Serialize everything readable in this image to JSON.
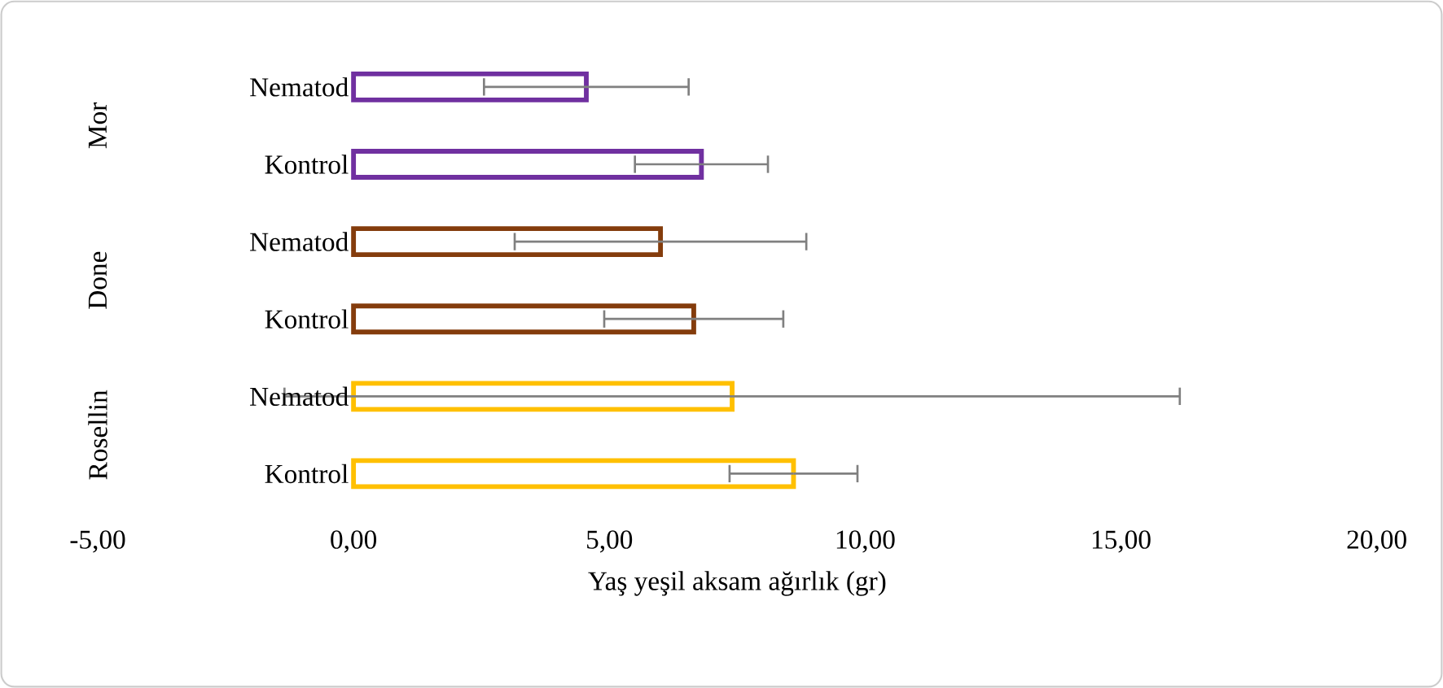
{
  "chart_data": {
    "type": "bar",
    "orientation": "horizontal",
    "xlabel": "Yaş yeşil aksam ağırlık (gr)",
    "categories": [
      "Nematod",
      "Kontrol",
      "Nematod",
      "Kontrol",
      "Nematod",
      "Kontrol"
    ],
    "annotations": [
      "Mor",
      "Done",
      "Rosellin"
    ],
    "values": [
      4.55,
      6.8,
      6.0,
      6.65,
      7.4,
      8.6
    ],
    "errors": [
      2.0,
      1.3,
      2.85,
      1.75,
      8.75,
      1.25
    ],
    "colors": [
      "#7030a0",
      "#7030a0",
      "#843c0c",
      "#843c0c",
      "#ffc000",
      "#ffc000"
    ],
    "xlim": [
      -5,
      20
    ],
    "xticks": [
      {
        "value": -5,
        "label": "-5,00"
      },
      {
        "value": 0,
        "label": "0,00"
      },
      {
        "value": 5,
        "label": "5,00"
      },
      {
        "value": 10,
        "label": "10,00"
      },
      {
        "value": 15,
        "label": "15,00"
      },
      {
        "value": 20,
        "label": "20,00"
      }
    ],
    "grid": false
  }
}
